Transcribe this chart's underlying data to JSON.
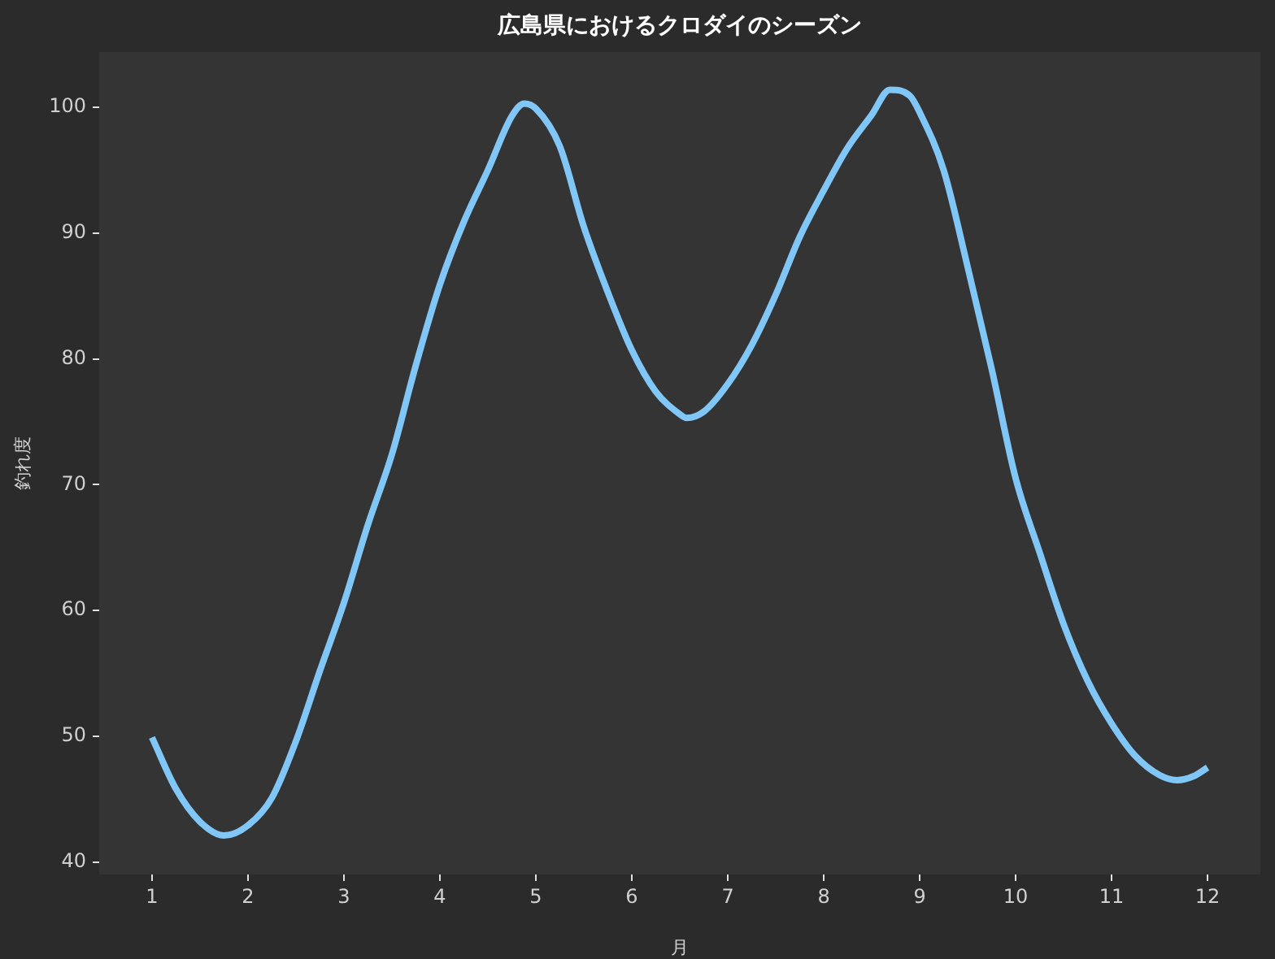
{
  "chart_data": {
    "type": "line",
    "title": "広島県におけるクロダイのシーズン",
    "xlabel": "月",
    "ylabel": "釣れ度",
    "x": [
      1,
      1.25,
      1.5,
      1.75,
      2,
      2.25,
      2.5,
      2.75,
      3,
      3.25,
      3.5,
      3.75,
      4,
      4.25,
      4.5,
      4.75,
      4.88,
      5,
      5.25,
      5.5,
      5.75,
      6,
      6.25,
      6.5,
      6.57,
      6.75,
      7,
      7.25,
      7.5,
      7.75,
      8,
      8.25,
      8.5,
      8.69,
      8.9,
      9,
      9.25,
      9.5,
      9.75,
      10,
      10.25,
      10.5,
      10.75,
      11,
      11.25,
      11.5,
      11.68,
      11.85,
      12
    ],
    "series": [
      {
        "color": "#80c6f7",
        "values": [
          49.9,
          45.8,
          43.2,
          42.1,
          42.9,
          45.1,
          49.6,
          55.2,
          60.6,
          66.8,
          72.4,
          79.5,
          85.9,
          90.9,
          95,
          99.3,
          100.3,
          99.9,
          96.9,
          90.5,
          85.3,
          80.7,
          77.4,
          75.6,
          75.3,
          75.8,
          78,
          81.1,
          85.1,
          89.7,
          93.4,
          96.8,
          99.4,
          101.4,
          100.9,
          99.6,
          95,
          87.3,
          79.2,
          70.5,
          64.6,
          58.9,
          54.4,
          51,
          48.4,
          46.9,
          46.5,
          46.8,
          47.5
        ]
      }
    ],
    "xlim": [
      0.45,
      12.55
    ],
    "ylim": [
      39,
      104.4
    ],
    "xticks": [
      1,
      2,
      3,
      4,
      5,
      6,
      7,
      8,
      9,
      10,
      11,
      12
    ],
    "yticks": [
      40,
      50,
      60,
      70,
      80,
      90,
      100
    ],
    "grid": false,
    "legend": false,
    "marker": "none",
    "line_style": "solid"
  }
}
